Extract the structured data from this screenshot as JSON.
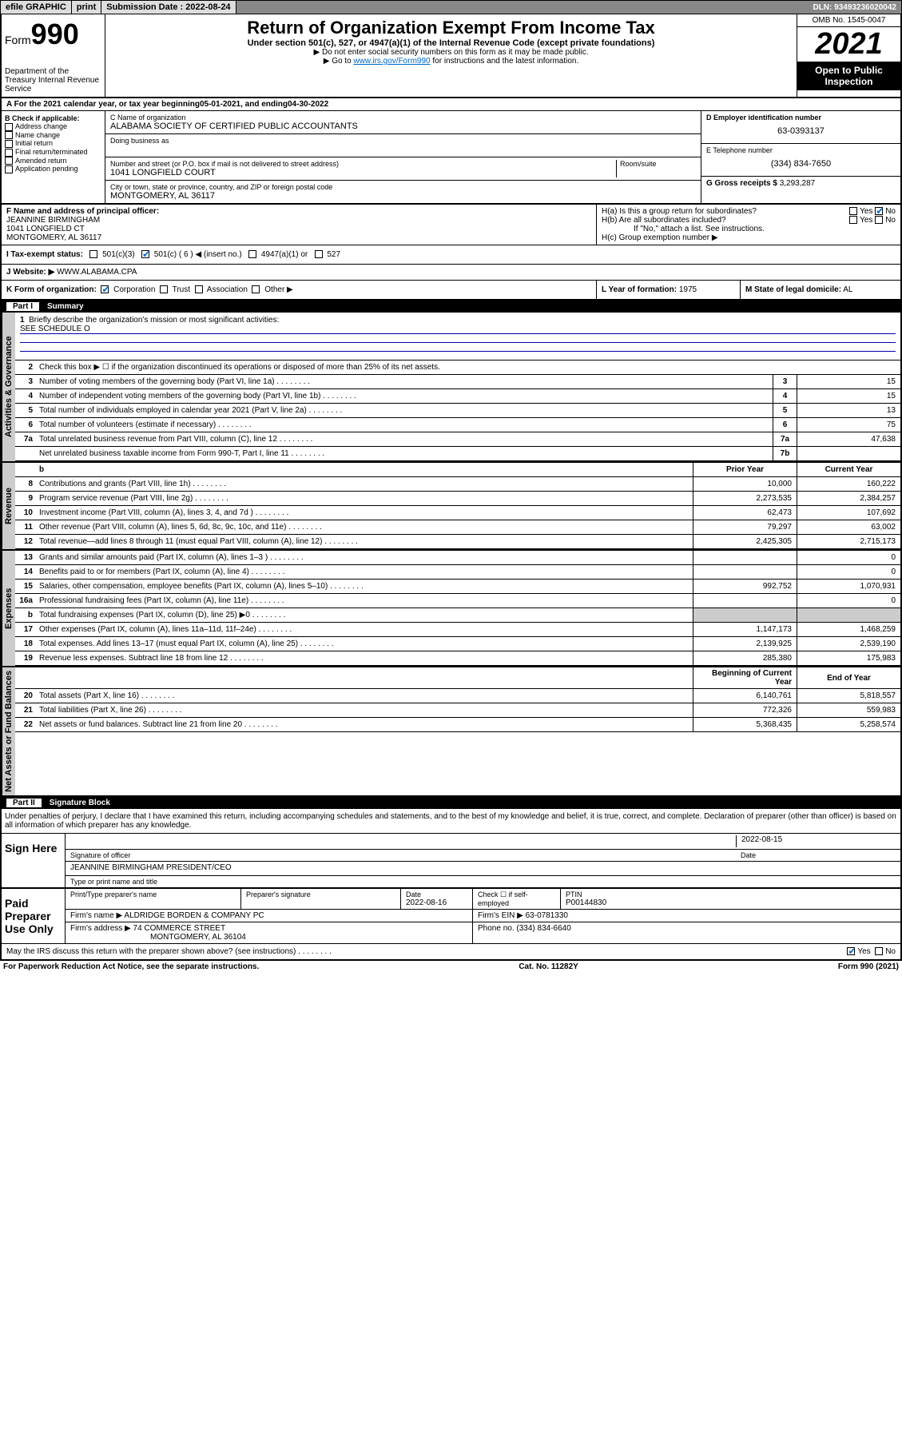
{
  "topbar": {
    "efile": "efile GRAPHIC",
    "print": "print",
    "subdate_label": "Submission Date :",
    "subdate": "2022-08-24",
    "dln": "DLN: 93493236020042"
  },
  "header": {
    "form_prefix": "Form",
    "form_num": "990",
    "dept": "Department of the Treasury Internal Revenue Service",
    "title": "Return of Organization Exempt From Income Tax",
    "sub": "Under section 501(c), 527, or 4947(a)(1) of the Internal Revenue Code (except private foundations)",
    "note1": "▶ Do not enter social security numbers on this form as it may be made public.",
    "note2_pre": "▶ Go to ",
    "note2_link": "www.irs.gov/Form990",
    "note2_post": " for instructions and the latest information.",
    "omb": "OMB No. 1545-0047",
    "year": "2021",
    "inspect": "Open to Public Inspection"
  },
  "lineA": {
    "text_pre": "A For the 2021 calendar year, or tax year beginning ",
    "begin": "05-01-2021",
    "mid": " , and ending ",
    "end": "04-30-2022"
  },
  "colB": {
    "hdr": "B Check if applicable:",
    "opts": [
      "Address change",
      "Name change",
      "Initial return",
      "Final return/terminated",
      "Amended return",
      "Application pending"
    ]
  },
  "colC": {
    "name_lbl": "C Name of organization",
    "name": "ALABAMA SOCIETY OF CERTIFIED PUBLIC ACCOUNTANTS",
    "dba_lbl": "Doing business as",
    "addr_lbl": "Number and street (or P.O. box if mail is not delivered to street address)",
    "room_lbl": "Room/suite",
    "addr": "1041 LONGFIELD COURT",
    "city_lbl": "City or town, state or province, country, and ZIP or foreign postal code",
    "city": "MONTGOMERY, AL  36117"
  },
  "colD": {
    "lbl": "D Employer identification number",
    "val": "63-0393137"
  },
  "colE": {
    "lbl": "E Telephone number",
    "val": "(334) 834-7650"
  },
  "colG": {
    "lbl": "G Gross receipts $",
    "val": "3,293,287"
  },
  "rowF": {
    "lbl": "F Name and address of principal officer:",
    "name": "JEANNINE BIRMINGHAM",
    "addr1": "1041 LONGFIELD CT",
    "addr2": "MONTGOMERY, AL  36117"
  },
  "rowH": {
    "a": "H(a)  Is this a group return for subordinates?",
    "b": "H(b)  Are all subordinates included?",
    "b_note": "If \"No,\" attach a list. See instructions.",
    "c": "H(c)  Group exemption number ▶",
    "yes": "Yes",
    "no": "No"
  },
  "rowI": {
    "lbl": "I   Tax-exempt status:",
    "o1": "501(c)(3)",
    "o2": "501(c) ( 6 ) ◀ (insert no.)",
    "o3": "4947(a)(1) or",
    "o4": "527"
  },
  "rowJ": {
    "lbl": "J   Website: ▶",
    "val": "WWW.ALABAMA.CPA"
  },
  "rowK": {
    "lbl": "K Form of organization:",
    "o1": "Corporation",
    "o2": "Trust",
    "o3": "Association",
    "o4": "Other ▶"
  },
  "rowL": {
    "lbl": "L Year of formation:",
    "val": "1975"
  },
  "rowM": {
    "lbl": "M State of legal domicile:",
    "val": "AL"
  },
  "part1": {
    "num": "Part I",
    "title": "Summary"
  },
  "tabs": {
    "gov": "Activities & Governance",
    "rev": "Revenue",
    "exp": "Expenses",
    "net": "Net Assets or Fund Balances"
  },
  "q1": {
    "n": "1",
    "d": "Briefly describe the organization's mission or most significant activities:",
    "v": "SEE SCHEDULE O"
  },
  "q2": {
    "n": "2",
    "d": "Check this box ▶ ☐  if the organization discontinued its operations or disposed of more than 25% of its net assets."
  },
  "cols": {
    "prior": "Prior Year",
    "curr": "Current Year",
    "begin": "Beginning of Current Year",
    "end": "End of Year"
  },
  "lines": [
    {
      "n": "3",
      "d": "Number of voting members of the governing body (Part VI, line 1a)",
      "box": "3",
      "v2": "15"
    },
    {
      "n": "4",
      "d": "Number of independent voting members of the governing body (Part VI, line 1b)",
      "box": "4",
      "v2": "15"
    },
    {
      "n": "5",
      "d": "Total number of individuals employed in calendar year 2021 (Part V, line 2a)",
      "box": "5",
      "v2": "13"
    },
    {
      "n": "6",
      "d": "Total number of volunteers (estimate if necessary)",
      "box": "6",
      "v2": "75"
    },
    {
      "n": "7a",
      "d": "Total unrelated business revenue from Part VIII, column (C), line 12",
      "box": "7a",
      "v2": "47,638"
    },
    {
      "n": "",
      "d": "Net unrelated business taxable income from Form 990-T, Part I, line 11",
      "box": "7b",
      "v2": ""
    }
  ],
  "rev": [
    {
      "n": "8",
      "d": "Contributions and grants (Part VIII, line 1h)",
      "v1": "10,000",
      "v2": "160,222"
    },
    {
      "n": "9",
      "d": "Program service revenue (Part VIII, line 2g)",
      "v1": "2,273,535",
      "v2": "2,384,257"
    },
    {
      "n": "10",
      "d": "Investment income (Part VIII, column (A), lines 3, 4, and 7d )",
      "v1": "62,473",
      "v2": "107,692"
    },
    {
      "n": "11",
      "d": "Other revenue (Part VIII, column (A), lines 5, 6d, 8c, 9c, 10c, and 11e)",
      "v1": "79,297",
      "v2": "63,002"
    },
    {
      "n": "12",
      "d": "Total revenue—add lines 8 through 11 (must equal Part VIII, column (A), line 12)",
      "v1": "2,425,305",
      "v2": "2,715,173"
    }
  ],
  "exp": [
    {
      "n": "13",
      "d": "Grants and similar amounts paid (Part IX, column (A), lines 1–3 )",
      "v1": "",
      "v2": "0"
    },
    {
      "n": "14",
      "d": "Benefits paid to or for members (Part IX, column (A), line 4)",
      "v1": "",
      "v2": "0"
    },
    {
      "n": "15",
      "d": "Salaries, other compensation, employee benefits (Part IX, column (A), lines 5–10)",
      "v1": "992,752",
      "v2": "1,070,931"
    },
    {
      "n": "16a",
      "d": "Professional fundraising fees (Part IX, column (A), line 11e)",
      "v1": "",
      "v2": "0"
    },
    {
      "n": "b",
      "d": "Total fundraising expenses (Part IX, column (D), line 25) ▶0",
      "v1": "gray",
      "v2": "gray"
    },
    {
      "n": "17",
      "d": "Other expenses (Part IX, column (A), lines 11a–11d, 11f–24e)",
      "v1": "1,147,173",
      "v2": "1,468,259"
    },
    {
      "n": "18",
      "d": "Total expenses. Add lines 13–17 (must equal Part IX, column (A), line 25)",
      "v1": "2,139,925",
      "v2": "2,539,190"
    },
    {
      "n": "19",
      "d": "Revenue less expenses. Subtract line 18 from line 12",
      "v1": "285,380",
      "v2": "175,983"
    }
  ],
  "net": [
    {
      "n": "20",
      "d": "Total assets (Part X, line 16)",
      "v1": "6,140,761",
      "v2": "5,818,557"
    },
    {
      "n": "21",
      "d": "Total liabilities (Part X, line 26)",
      "v1": "772,326",
      "v2": "559,983"
    },
    {
      "n": "22",
      "d": "Net assets or fund balances. Subtract line 21 from line 20",
      "v1": "5,368,435",
      "v2": "5,258,574"
    }
  ],
  "part2": {
    "num": "Part II",
    "title": "Signature Block"
  },
  "decl": "Under penalties of perjury, I declare that I have examined this return, including accompanying schedules and statements, and to the best of my knowledge and belief, it is true, correct, and complete. Declaration of preparer (other than officer) is based on all information of which preparer has any knowledge.",
  "sign": {
    "here": "Sign Here",
    "sig_lbl": "Signature of officer",
    "date_lbl": "Date",
    "date": "2022-08-15",
    "name": "JEANNINE BIRMINGHAM  PRESIDENT/CEO",
    "name_lbl": "Type or print name and title"
  },
  "prep": {
    "here": "Paid Preparer Use Only",
    "c1": "Print/Type preparer's name",
    "c2": "Preparer's signature",
    "c3": "Date",
    "c3v": "2022-08-16",
    "c4": "Check ☐ if self-employed",
    "c5": "PTIN",
    "c5v": "P00144830",
    "firm_lbl": "Firm's name    ▶",
    "firm": "ALDRIDGE BORDEN & COMPANY PC",
    "ein_lbl": "Firm's EIN ▶",
    "ein": "63-0781330",
    "addr_lbl": "Firm's address ▶",
    "addr1": "74 COMMERCE STREET",
    "addr2": "MONTGOMERY, AL  36104",
    "phone_lbl": "Phone no.",
    "phone": "(334) 834-6640"
  },
  "discuss": "May the IRS discuss this return with the preparer shown above? (see instructions)",
  "footer": {
    "left": "For Paperwork Reduction Act Notice, see the separate instructions.",
    "mid": "Cat. No. 11282Y",
    "right": "Form 990 (2021)"
  }
}
